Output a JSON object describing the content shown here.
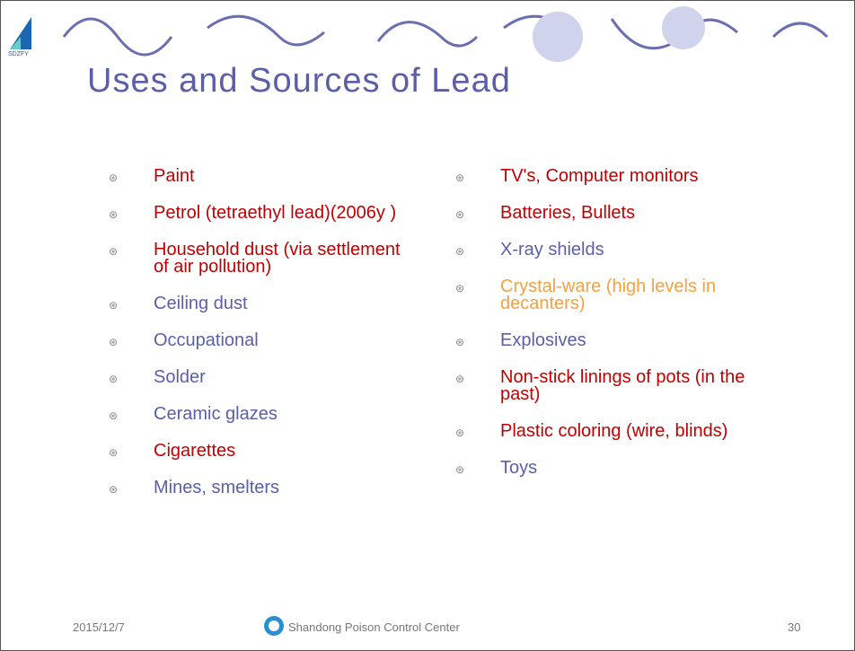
{
  "header": {
    "logo": "SDZFY",
    "title": "Uses and Sources of Lead"
  },
  "left": [
    {
      "text": "Paint",
      "color": "red"
    },
    {
      "text": "Petrol (tetraethyl lead)(2006y )",
      "color": "red"
    },
    {
      "text": "Household dust (via settlement of air pollution)",
      "color": "red"
    },
    {
      "text": "Ceiling dust",
      "color": "blue"
    },
    {
      "text": "Occupational",
      "color": "blue"
    },
    {
      "text": "Solder",
      "color": "blue"
    },
    {
      "text": "Ceramic glazes",
      "color": "blue"
    },
    {
      "text": "Cigarettes",
      "color": "red"
    },
    {
      "text": "Mines, smelters",
      "color": "blue"
    }
  ],
  "right": [
    {
      "text": "TV's, Computer monitors",
      "color": "red"
    },
    {
      "text": "Batteries, Bullets",
      "color": "red"
    },
    {
      "text": "X-ray shields",
      "color": "blue"
    },
    {
      "text": "Crystal-ware (high levels in decanters)",
      "color": "orange"
    },
    {
      "text": "Explosives",
      "color": "blue"
    },
    {
      "text": "Non-stick linings of pots (in the past)",
      "color": "red"
    },
    {
      "text": "Plastic coloring (wire, blinds)",
      "color": "red"
    },
    {
      "text": "Toys",
      "color": "blue"
    }
  ],
  "footer": {
    "date": "2015/12/7",
    "center": "Shandong Poison Control Center",
    "page": "30"
  }
}
